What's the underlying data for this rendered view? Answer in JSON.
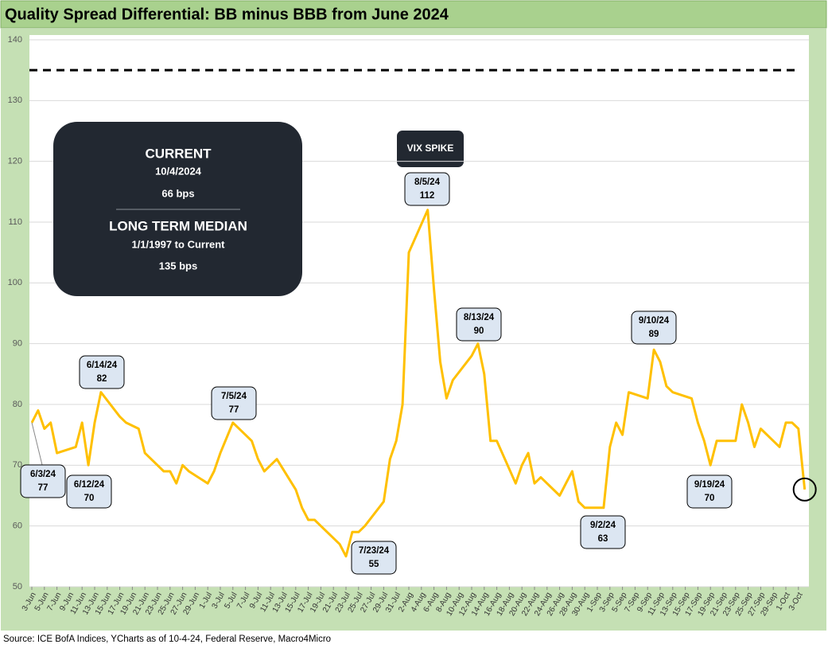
{
  "chart_data": {
    "type": "line",
    "title": "Quality Spread Differential: BB minus BBB from June 2024",
    "source": "Source: ICE BofA Indices, YCharts as of 10-4-24, Federal Reserve, Macro4Micro",
    "color": "#ffc000",
    "grid": true,
    "ylim": [
      50,
      140
    ],
    "yticks": [
      50,
      60,
      70,
      80,
      90,
      100,
      110,
      120,
      130,
      140
    ],
    "reference_line": 135,
    "x": [
      "3-Jun",
      "4-Jun",
      "5-Jun",
      "6-Jun",
      "7-Jun",
      "10-Jun",
      "11-Jun",
      "12-Jun",
      "13-Jun",
      "14-Jun",
      "17-Jun",
      "18-Jun",
      "20-Jun",
      "21-Jun",
      "24-Jun",
      "25-Jun",
      "26-Jun",
      "27-Jun",
      "28-Jun",
      "1-Jul",
      "2-Jul",
      "3-Jul",
      "5-Jul",
      "8-Jul",
      "9-Jul",
      "10-Jul",
      "11-Jul",
      "12-Jul",
      "15-Jul",
      "16-Jul",
      "17-Jul",
      "18-Jul",
      "19-Jul",
      "22-Jul",
      "23-Jul",
      "24-Jul",
      "25-Jul",
      "26-Jul",
      "29-Jul",
      "30-Jul",
      "31-Jul",
      "1-Aug",
      "2-Aug",
      "5-Aug",
      "6-Aug",
      "7-Aug",
      "8-Aug",
      "9-Aug",
      "12-Aug",
      "13-Aug",
      "14-Aug",
      "15-Aug",
      "16-Aug",
      "19-Aug",
      "20-Aug",
      "21-Aug",
      "22-Aug",
      "23-Aug",
      "26-Aug",
      "27-Aug",
      "28-Aug",
      "29-Aug",
      "30-Aug",
      "2-Sep",
      "3-Sep",
      "4-Sep",
      "5-Sep",
      "6-Sep",
      "9-Sep",
      "10-Sep",
      "11-Sep",
      "12-Sep",
      "13-Sep",
      "16-Sep",
      "17-Sep",
      "18-Sep",
      "19-Sep",
      "20-Sep",
      "23-Sep",
      "24-Sep",
      "25-Sep",
      "26-Sep",
      "27-Sep",
      "30-Sep",
      "1-Oct",
      "2-Oct",
      "3-Oct",
      "4-Oct"
    ],
    "values": [
      77,
      79,
      76,
      77,
      72,
      73,
      77,
      70,
      77,
      82,
      78,
      77,
      76,
      72,
      69,
      69,
      67,
      70,
      69,
      67,
      69,
      72,
      77,
      74,
      71,
      69,
      70,
      71,
      66,
      63,
      61,
      61,
      60,
      57,
      55,
      59,
      59,
      60,
      64,
      71,
      74,
      80,
      105,
      112,
      99,
      87,
      81,
      84,
      88,
      90,
      85,
      74,
      74,
      67,
      70,
      72,
      67,
      68,
      65,
      67,
      69,
      64,
      63,
      63,
      73,
      77,
      75,
      82,
      81,
      89,
      87,
      83,
      82,
      81,
      77,
      74,
      70,
      74,
      74,
      80,
      77,
      73,
      76,
      73,
      77,
      77,
      76,
      66
    ],
    "xticks": [
      "3-Jun",
      "5-Jun",
      "7-Jun",
      "9-Jun",
      "11-Jun",
      "13-Jun",
      "15-Jun",
      "17-Jun",
      "19-Jun",
      "21-Jun",
      "23-Jun",
      "25-Jun",
      "27-Jun",
      "29-Jun",
      "1-Jul",
      "3-Jul",
      "5-Jul",
      "7-Jul",
      "9-Jul",
      "11-Jul",
      "13-Jul",
      "15-Jul",
      "17-Jul",
      "19-Jul",
      "21-Jul",
      "23-Jul",
      "25-Jul",
      "27-Jul",
      "29-Jul",
      "31-Jul",
      "2-Aug",
      "4-Aug",
      "6-Aug",
      "8-Aug",
      "10-Aug",
      "12-Aug",
      "14-Aug",
      "16-Aug",
      "18-Aug",
      "20-Aug",
      "22-Aug",
      "24-Aug",
      "26-Aug",
      "28-Aug",
      "30-Aug",
      "1-Sep",
      "3-Sep",
      "5-Sep",
      "7-Sep",
      "9-Sep",
      "11-Sep",
      "13-Sep",
      "15-Sep",
      "17-Sep",
      "19-Sep",
      "21-Sep",
      "23-Sep",
      "25-Sep",
      "27-Sep",
      "29-Sep",
      "1-Oct",
      "3-Oct"
    ],
    "annotations": [
      {
        "label": "6/3/24",
        "value": 77
      },
      {
        "label": "6/12/24",
        "value": 70
      },
      {
        "label": "6/14/24",
        "value": 82
      },
      {
        "label": "7/5/24",
        "value": 77
      },
      {
        "label": "7/23/24",
        "value": 55
      },
      {
        "label": "8/5/24",
        "value": 112
      },
      {
        "label": "8/13/24",
        "value": 90
      },
      {
        "label": "9/2/24",
        "value": 63
      },
      {
        "label": "9/10/24",
        "value": 89
      },
      {
        "label": "9/19/24",
        "value": 70
      }
    ],
    "event_label": "VIX SPIKE",
    "info_box": {
      "current_title": "CURRENT",
      "current_date": "10/4/2024",
      "current_value": "66 bps",
      "median_title": "LONG TERM MEDIAN",
      "median_period": "1/1/1997 to Current",
      "median_value": "135 bps"
    }
  }
}
